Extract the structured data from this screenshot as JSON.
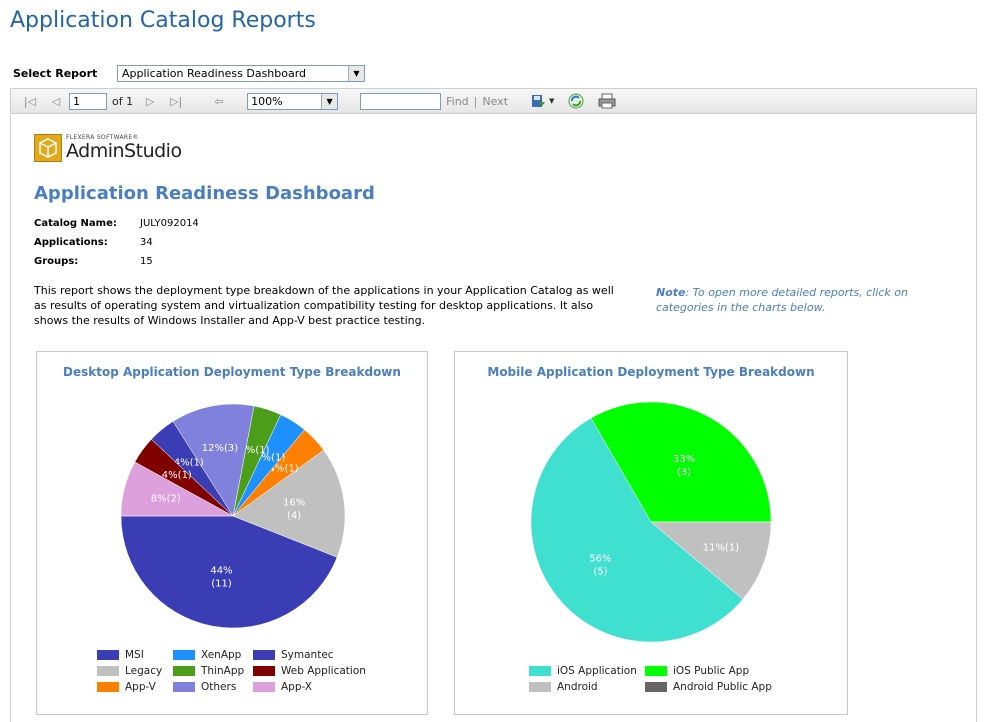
{
  "page_title": "Application Catalog Reports",
  "select_report": {
    "label": "Select Report",
    "value": "Application Readiness Dashboard"
  },
  "toolbar": {
    "page_value": "1",
    "of_label": "of 1",
    "zoom_value": "100%",
    "find_value": "",
    "find_label": "Find",
    "separator": "|",
    "next_label": "Next",
    "icons": {
      "first": "first-page-icon",
      "prev": "previous-page-icon",
      "next": "next-page-icon",
      "last": "last-page-icon",
      "back": "back-icon",
      "export": "export-icon",
      "refresh": "refresh-icon",
      "print": "print-icon"
    }
  },
  "report": {
    "logo": {
      "company": "FLEXERA SOFTWARE®",
      "product": "AdminStudio"
    },
    "title": "Application Readiness Dashboard",
    "info": [
      {
        "key": "Catalog Name:",
        "value": "JULY092014"
      },
      {
        "key": "Applications:",
        "value": "34"
      },
      {
        "key": "Groups:",
        "value": "15"
      }
    ],
    "description": "This report shows the deployment type breakdown of the applications in your Application Catalog as well as results of operating system and virtualization compatibility testing for desktop applications. It also shows the results of Windows Installer and App-V best practice testing.",
    "note_label": "Note",
    "note_text": ": To open more detailed reports, click on categories in the charts below."
  },
  "chart_data": [
    {
      "type": "pie",
      "title": "Desktop Application Deployment Type Breakdown",
      "slices": [
        {
          "name": "MSI",
          "value": 11,
          "label": "44%",
          "count": "(11)",
          "color": "#3a3db4"
        },
        {
          "name": "Legacy",
          "value": 4,
          "label": "16%",
          "count": "(4)",
          "color": "#c0c0c0"
        },
        {
          "name": "App-V",
          "value": 1,
          "label": "4%(1)",
          "color": "#ff8000"
        },
        {
          "name": "XenApp",
          "value": 1,
          "label": "4%(1)",
          "color": "#1e90ff"
        },
        {
          "name": "ThinApp",
          "value": 1,
          "label": "4%(1)",
          "color": "#4c9e1a"
        },
        {
          "name": "Others",
          "value": 3,
          "label": "12%(3)",
          "color": "#8080dd"
        },
        {
          "name": "Symantec",
          "value": 1,
          "label": "4%(1)",
          "color": "#3a3db4"
        },
        {
          "name": "Web Application",
          "value": 1,
          "label": "4%(1)",
          "color": "#800000"
        },
        {
          "name": "App-X",
          "value": 2,
          "label": "8%(2)",
          "color": "#dda0dd"
        }
      ],
      "legend": [
        {
          "name": "MSI",
          "color": "#3a3db4"
        },
        {
          "name": "XenApp",
          "color": "#1e90ff"
        },
        {
          "name": "Symantec",
          "color": "#3a3db4"
        },
        {
          "name": "Legacy",
          "color": "#c0c0c0"
        },
        {
          "name": "ThinApp",
          "color": "#4c9e1a"
        },
        {
          "name": "Web Application",
          "color": "#800000"
        },
        {
          "name": "App-V",
          "color": "#ff8000"
        },
        {
          "name": "Others",
          "color": "#8080dd"
        },
        {
          "name": "App-X",
          "color": "#dda0dd"
        }
      ]
    },
    {
      "type": "pie",
      "title": "Mobile Application Deployment Type Breakdown",
      "slices": [
        {
          "name": "iOS Public App",
          "value": 3,
          "label": "33%",
          "count": "(3)",
          "color": "#00ff00"
        },
        {
          "name": "iOS Application",
          "value": 5,
          "label": "56%",
          "count": "(5)",
          "color": "#40e0d0"
        },
        {
          "name": "Android",
          "value": 1,
          "label": "11%(1)",
          "color": "#c0c0c0"
        }
      ],
      "legend": [
        {
          "name": "iOS Application",
          "color": "#40e0d0"
        },
        {
          "name": "iOS Public App",
          "color": "#00ff00"
        },
        {
          "name": "Android",
          "color": "#c0c0c0"
        },
        {
          "name": "Android Public App",
          "color": "#666666"
        }
      ]
    }
  ]
}
